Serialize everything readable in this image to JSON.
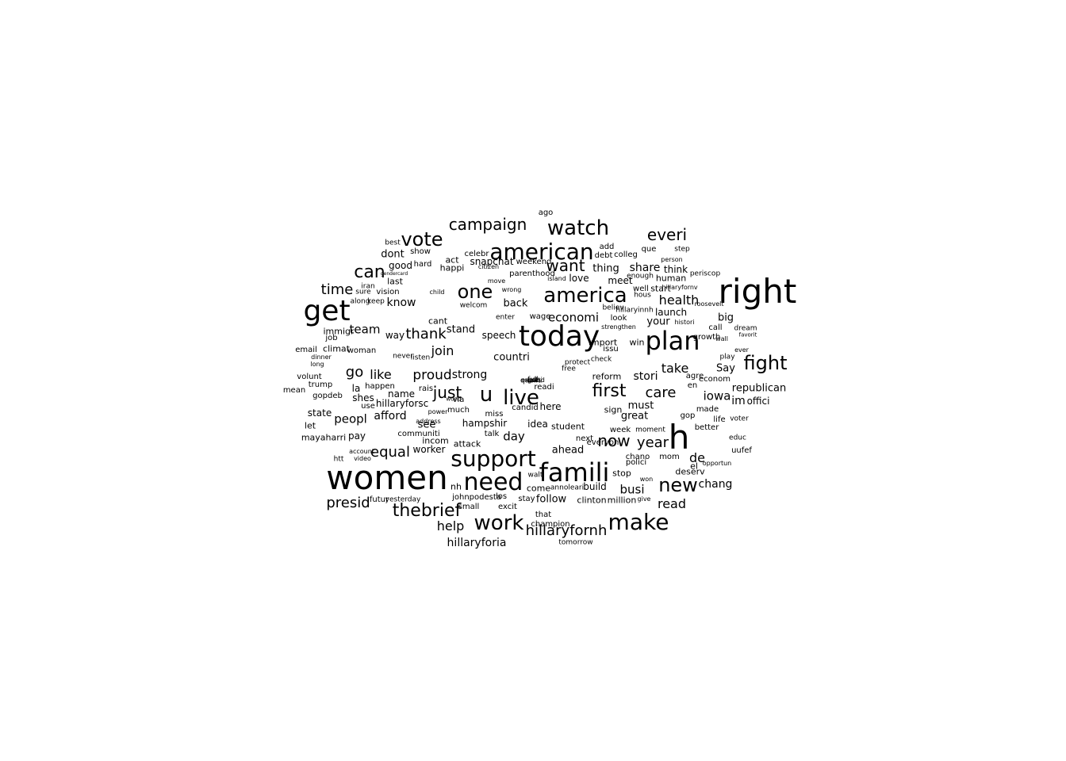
{
  "word_cloud": {
    "words": [
      {
        "text": "right",
        "size": 42
      },
      {
        "text": "women",
        "size": 42
      },
      {
        "text": "today",
        "size": 36
      },
      {
        "text": "get",
        "size": 36
      },
      {
        "text": "famili",
        "size": 32
      },
      {
        "text": "h",
        "size": 42
      },
      {
        "text": "plan",
        "size": 32
      },
      {
        "text": "need",
        "size": 30
      },
      {
        "text": "support",
        "size": 28
      },
      {
        "text": "american",
        "size": 28
      },
      {
        "text": "america",
        "size": 26
      },
      {
        "text": "make",
        "size": 28
      },
      {
        "text": "watch",
        "size": 26
      },
      {
        "text": "work",
        "size": 26
      },
      {
        "text": "vote",
        "size": 24
      },
      {
        "text": "live",
        "size": 26
      },
      {
        "text": "fight",
        "size": 24
      },
      {
        "text": "thebrief",
        "size": 22
      },
      {
        "text": "one",
        "size": 24
      },
      {
        "text": "can",
        "size": 22
      },
      {
        "text": "u",
        "size": 26
      },
      {
        "text": "new",
        "size": 24
      },
      {
        "text": "first",
        "size": 22
      },
      {
        "text": "campaign",
        "size": 20
      },
      {
        "text": "everi",
        "size": 20
      },
      {
        "text": "time",
        "size": 18
      },
      {
        "text": "want",
        "size": 20
      },
      {
        "text": "now",
        "size": 20
      },
      {
        "text": "year",
        "size": 18
      },
      {
        "text": "care",
        "size": 18
      },
      {
        "text": "just",
        "size": 20
      },
      {
        "text": "hillaryfornh",
        "size": 18
      },
      {
        "text": "presid",
        "size": 18
      },
      {
        "text": "thank",
        "size": 18
      },
      {
        "text": "equal",
        "size": 18
      },
      {
        "text": "proud",
        "size": 17
      },
      {
        "text": "health",
        "size": 16
      },
      {
        "text": "take",
        "size": 16
      },
      {
        "text": "go",
        "size": 18
      },
      {
        "text": "de",
        "size": 16
      },
      {
        "text": "read",
        "size": 16
      },
      {
        "text": "busi",
        "size": 15
      },
      {
        "text": "economi",
        "size": 15
      },
      {
        "text": "help",
        "size": 16
      },
      {
        "text": "hillaryforia",
        "size": 14
      },
      {
        "text": "peopl",
        "size": 15
      },
      {
        "text": "like",
        "size": 16
      },
      {
        "text": "join",
        "size": 16
      },
      {
        "text": "team",
        "size": 15
      },
      {
        "text": "know",
        "size": 14
      },
      {
        "text": "afford",
        "size": 14
      },
      {
        "text": "chang",
        "size": 14
      },
      {
        "text": "iowa",
        "size": 15
      },
      {
        "text": "republican",
        "size": 13
      },
      {
        "text": "day",
        "size": 15
      },
      {
        "text": "strong",
        "size": 14
      },
      {
        "text": "countri",
        "size": 13
      },
      {
        "text": "share",
        "size": 14
      },
      {
        "text": "thing",
        "size": 13
      },
      {
        "text": "back",
        "size": 13
      },
      {
        "text": "dont",
        "size": 13
      },
      {
        "text": "stand",
        "size": 13
      },
      {
        "text": "great",
        "size": 13
      },
      {
        "text": "stori",
        "size": 14
      },
      {
        "text": "must",
        "size": 13
      },
      {
        "text": "Say",
        "size": 13
      },
      {
        "text": "big",
        "size": 13
      },
      {
        "text": "launch",
        "size": 12
      },
      {
        "text": "your",
        "size": 13
      },
      {
        "text": "love",
        "size": 12
      },
      {
        "text": "ahead",
        "size": 13
      },
      {
        "text": "follow",
        "size": 13
      },
      {
        "text": "hillaryforsc",
        "size": 12
      },
      {
        "text": "snapchat",
        "size": 12
      },
      {
        "text": "speech",
        "size": 12
      },
      {
        "text": "state",
        "size": 12
      },
      {
        "text": "see",
        "size": 13
      },
      {
        "text": "way",
        "size": 12
      },
      {
        "text": "im",
        "size": 14
      },
      {
        "text": "offici",
        "size": 12
      },
      {
        "text": "hampshir",
        "size": 12
      },
      {
        "text": "worker",
        "size": 12
      },
      {
        "text": "name",
        "size": 12
      },
      {
        "text": "last",
        "size": 11
      },
      {
        "text": "good",
        "size": 12
      },
      {
        "text": "happi",
        "size": 11
      },
      {
        "text": "meet",
        "size": 12
      },
      {
        "text": "think",
        "size": 12
      },
      {
        "text": "start",
        "size": 11
      },
      {
        "text": "human",
        "size": 11
      },
      {
        "text": "win",
        "size": 11
      },
      {
        "text": "sign",
        "size": 11
      },
      {
        "text": "build",
        "size": 12
      },
      {
        "text": "million",
        "size": 11
      },
      {
        "text": "clinton",
        "size": 11
      },
      {
        "text": "stop",
        "size": 11
      },
      {
        "text": "chano",
        "size": 10
      },
      {
        "text": "student",
        "size": 11
      },
      {
        "text": "attack",
        "size": 11
      },
      {
        "text": "incom",
        "size": 11
      },
      {
        "text": "nh",
        "size": 11
      },
      {
        "text": "johnpodesta",
        "size": 10
      },
      {
        "text": "small",
        "size": 10
      },
      {
        "text": "excit",
        "size": 10
      },
      {
        "text": "stay",
        "size": 10
      },
      {
        "text": "idea",
        "size": 12
      },
      {
        "text": "come",
        "size": 11
      },
      {
        "text": "here",
        "size": 12
      },
      {
        "text": "mayaharri",
        "size": 11
      },
      {
        "text": "pay",
        "size": 12
      },
      {
        "text": "let",
        "size": 11
      },
      {
        "text": "shes",
        "size": 12
      },
      {
        "text": "gopdeb",
        "size": 10
      },
      {
        "text": "la",
        "size": 12
      },
      {
        "text": "happen",
        "size": 10
      },
      {
        "text": "use",
        "size": 10
      },
      {
        "text": "woman",
        "size": 10
      },
      {
        "text": "climat",
        "size": 11
      },
      {
        "text": "job",
        "size": 10
      },
      {
        "text": "immigr",
        "size": 11
      },
      {
        "text": "email",
        "size": 10
      },
      {
        "text": "volunt",
        "size": 10
      },
      {
        "text": "trump",
        "size": 10
      },
      {
        "text": "mean",
        "size": 10
      },
      {
        "text": "keep",
        "size": 9
      },
      {
        "text": "vision",
        "size": 10
      },
      {
        "text": "hard",
        "size": 10
      },
      {
        "text": "act",
        "size": 11
      },
      {
        "text": "show",
        "size": 10
      },
      {
        "text": "celebr",
        "size": 10
      },
      {
        "text": "weekend",
        "size": 10
      },
      {
        "text": "parenthood",
        "size": 10
      },
      {
        "text": "add",
        "size": 10
      },
      {
        "text": "debt",
        "size": 10
      },
      {
        "text": "colleg",
        "size": 10
      },
      {
        "text": "que",
        "size": 10
      },
      {
        "text": "step",
        "size": 9
      },
      {
        "text": "hous",
        "size": 9
      },
      {
        "text": "hillaryinnh",
        "size": 9
      },
      {
        "text": "believ",
        "size": 9
      },
      {
        "text": "import",
        "size": 11
      },
      {
        "text": "issu",
        "size": 10
      },
      {
        "text": "look",
        "size": 10
      },
      {
        "text": "free",
        "size": 9
      },
      {
        "text": "check",
        "size": 9
      },
      {
        "text": "protect",
        "size": 9
      },
      {
        "text": "reform",
        "size": 11
      },
      {
        "text": "readi",
        "size": 10
      },
      {
        "text": "candid",
        "size": 10
      },
      {
        "text": "qualiti",
        "size": 9
      },
      {
        "text": "enter",
        "size": 9
      },
      {
        "text": "wage",
        "size": 10
      },
      {
        "text": "welcom",
        "size": 9
      },
      {
        "text": "cant",
        "size": 11
      },
      {
        "text": "rais",
        "size": 10
      },
      {
        "text": "communiti",
        "size": 10
      },
      {
        "text": "via",
        "size": 10
      },
      {
        "text": "much",
        "size": 10
      },
      {
        "text": "miss",
        "size": 10
      },
      {
        "text": "talk",
        "size": 10
      },
      {
        "text": "made",
        "size": 10
      },
      {
        "text": "life",
        "size": 10
      },
      {
        "text": "voter",
        "size": 9
      },
      {
        "text": "educ",
        "size": 9
      },
      {
        "text": "uufef",
        "size": 10
      },
      {
        "text": "deserv",
        "size": 11
      },
      {
        "text": "el",
        "size": 11
      },
      {
        "text": "better",
        "size": 10
      },
      {
        "text": "econom",
        "size": 10
      },
      {
        "text": "gop",
        "size": 10
      },
      {
        "text": "moment",
        "size": 9
      },
      {
        "text": "week",
        "size": 10
      },
      {
        "text": "mom",
        "size": 10
      },
      {
        "text": "polici",
        "size": 10
      },
      {
        "text": "everyon",
        "size": 10
      },
      {
        "text": "next",
        "size": 10
      },
      {
        "text": "annoleari",
        "size": 9
      },
      {
        "text": "that",
        "size": 10
      },
      {
        "text": "champion",
        "size": 10
      },
      {
        "text": "tomorrow",
        "size": 9
      },
      {
        "text": "futur",
        "size": 10
      },
      {
        "text": "yesterday",
        "size": 9
      },
      {
        "text": "call",
        "size": 10
      },
      {
        "text": "dream",
        "size": 9
      },
      {
        "text": "ever",
        "size": 8
      },
      {
        "text": "play",
        "size": 9
      },
      {
        "text": "wall",
        "size": 8
      },
      {
        "text": "growth",
        "size": 10
      },
      {
        "text": "periscop",
        "size": 9
      },
      {
        "text": "roosevelt",
        "size": 8
      },
      {
        "text": "histori",
        "size": 8
      },
      {
        "text": "agre",
        "size": 10
      },
      {
        "text": "en",
        "size": 10
      },
      {
        "text": "opportun",
        "size": 8
      },
      {
        "text": "ago",
        "size": 10
      },
      {
        "text": "best",
        "size": 9
      },
      {
        "text": "iran",
        "size": 9
      },
      {
        "text": "sure",
        "size": 9
      },
      {
        "text": "along",
        "size": 9
      },
      {
        "text": "gendercard",
        "size": 6
      },
      {
        "text": "favorit",
        "size": 7
      },
      {
        "text": "dinner",
        "size": 8
      },
      {
        "text": "long",
        "size": 8
      },
      {
        "text": "htt",
        "size": 9
      },
      {
        "text": "video",
        "size": 8
      },
      {
        "text": "account",
        "size": 8
      },
      {
        "text": "address",
        "size": 8
      },
      {
        "text": "power",
        "size": 8
      },
      {
        "text": "world",
        "size": 7
      },
      {
        "text": "los",
        "size": 10
      },
      {
        "text": "walt",
        "size": 9
      },
      {
        "text": "enough",
        "size": 9
      },
      {
        "text": "give",
        "size": 8
      },
      {
        "text": "won",
        "size": 8
      },
      {
        "text": "strengthen",
        "size": 8
      },
      {
        "text": "person",
        "size": 8
      },
      {
        "text": "never",
        "size": 9
      },
      {
        "text": "listen",
        "size": 9
      },
      {
        "text": "child",
        "size": 8
      },
      {
        "text": "wrong",
        "size": 8
      },
      {
        "text": "move",
        "size": 8
      },
      {
        "text": "citizen",
        "size": 8
      },
      {
        "text": "island",
        "size": 8
      },
      {
        "text": "well",
        "size": 10
      },
      {
        "text": "hillaryfornv",
        "size": 8
      },
      {
        "text": "full",
        "size": 9
      },
      {
        "text": "got",
        "size": 8
      },
      {
        "text": "expand",
        "size": 8
      },
      {
        "text": "news",
        "size": 8
      },
      {
        "text": "put",
        "size": 8
      }
    ]
  }
}
